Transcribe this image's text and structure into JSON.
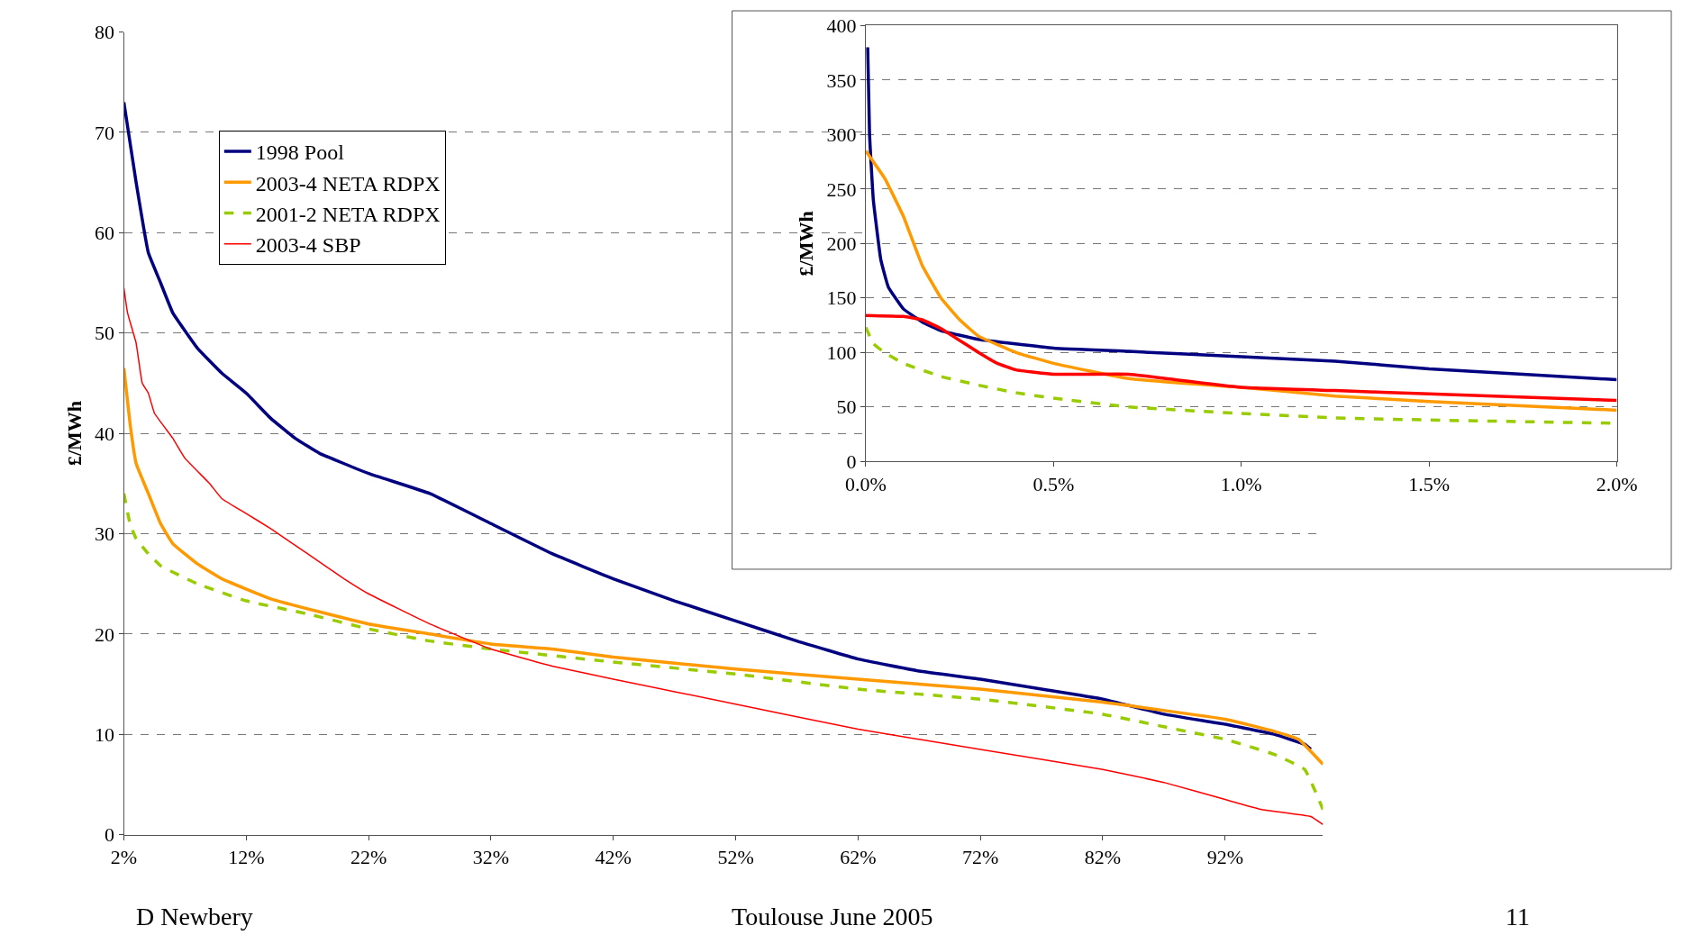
{
  "chart_data": [
    {
      "type": "line",
      "ylabel": "£/MWh",
      "xlim": [
        2,
        100
      ],
      "xticks": [
        {
          "value": 2,
          "label": "2%"
        },
        {
          "value": 12,
          "label": "12%"
        },
        {
          "value": 22,
          "label": "22%"
        },
        {
          "value": 32,
          "label": "32%"
        },
        {
          "value": 42,
          "label": "42%"
        },
        {
          "value": 52,
          "label": "52%"
        },
        {
          "value": 62,
          "label": "62%"
        },
        {
          "value": 72,
          "label": "72%"
        },
        {
          "value": 82,
          "label": "82%"
        },
        {
          "value": 92,
          "label": "92%"
        }
      ],
      "ylim": [
        0,
        80
      ],
      "yticks": [
        0,
        10,
        20,
        30,
        40,
        50,
        60,
        70,
        80
      ],
      "grid": "y",
      "legend": "top left",
      "marker": "none",
      "annotations": [
        "D Newbery",
        "Toulouse June 2005",
        "11"
      ],
      "series": [
        {
          "name": "1998 Pool",
          "color": "#000080",
          "line_style": "solid",
          "x": [
            2,
            3,
            4,
            5,
            6,
            8,
            10,
            12,
            14,
            16,
            18,
            22,
            27,
            32,
            37,
            42,
            47,
            52,
            57,
            62,
            67,
            72,
            77,
            82,
            87,
            92,
            96,
            98.5,
            99
          ],
          "values": [
            73,
            65,
            58,
            55,
            52,
            48.5,
            46,
            44,
            41.5,
            39.5,
            38,
            36,
            34,
            31,
            28,
            25.5,
            23.3,
            21.3,
            19.3,
            17.5,
            16.3,
            15.5,
            14.5,
            13.5,
            12,
            11,
            10,
            9,
            8.5
          ]
        },
        {
          "name": "2003-4 NETA RDPX",
          "color": "#ff9900",
          "line_style": "solid",
          "x": [
            2,
            2.5,
            3,
            4,
            5,
            6,
            8,
            10,
            14,
            18,
            22,
            27,
            32,
            37,
            42,
            52,
            62,
            72,
            82,
            92,
            96,
            98,
            100
          ],
          "values": [
            46.5,
            41,
            37,
            34,
            31,
            29,
            27,
            25.5,
            23.5,
            22.2,
            21,
            20,
            19,
            18.5,
            17.7,
            16.5,
            15.5,
            14.5,
            13.2,
            11.5,
            10.3,
            9.5,
            7
          ]
        },
        {
          "name": "2001-2 NETA RDPX",
          "color": "#99cc00",
          "line_style": "dashed",
          "x": [
            2,
            2.5,
            3,
            4,
            5,
            8,
            12,
            17,
            22,
            27,
            32,
            42,
            52,
            62,
            72,
            82,
            88,
            92,
            96,
            98.5,
            100
          ],
          "values": [
            34,
            31,
            29.5,
            28,
            26.8,
            25,
            23.3,
            22,
            20.5,
            19.3,
            18.5,
            17.2,
            16,
            14.5,
            13.5,
            12,
            10.5,
            9.5,
            8,
            6.5,
            2.5
          ]
        },
        {
          "name": "2003-4 SBP",
          "color": "#ff0000",
          "line_style": "solid",
          "x": [
            2,
            2.3,
            3,
            3.5,
            4,
            4.5,
            6,
            7,
            9,
            10,
            12,
            14,
            17,
            20,
            22,
            27,
            32,
            37,
            42,
            52,
            62,
            72,
            82,
            87,
            92,
            95,
            99,
            100
          ],
          "values": [
            54.5,
            52,
            49,
            45,
            44,
            42,
            39.5,
            37.5,
            35,
            33.5,
            32,
            30.5,
            28,
            25.5,
            24,
            21,
            18.5,
            16.8,
            15.5,
            13,
            10.5,
            8.5,
            6.5,
            5.2,
            3.5,
            2.5,
            1.8,
            1
          ]
        }
      ]
    },
    {
      "type": "line",
      "ylabel": "£/MWh",
      "xlim": [
        0,
        2
      ],
      "xticks": [
        {
          "value": 0,
          "label": "0.0%"
        },
        {
          "value": 0.5,
          "label": "0.5%"
        },
        {
          "value": 1,
          "label": "1.0%"
        },
        {
          "value": 1.5,
          "label": "1.5%"
        },
        {
          "value": 2,
          "label": "2.0%"
        }
      ],
      "ylim": [
        0,
        400
      ],
      "yticks": [
        0,
        50,
        100,
        150,
        200,
        250,
        300,
        350,
        400
      ],
      "grid": "y",
      "marker": "none",
      "series": [
        {
          "color": "#000080",
          "line_style": "solid",
          "x": [
            0.005,
            0.01,
            0.02,
            0.04,
            0.06,
            0.1,
            0.15,
            0.2,
            0.3,
            0.5,
            0.7,
            1.0,
            1.25,
            1.5,
            1.75,
            2.0
          ],
          "values": [
            380,
            300,
            240,
            185,
            160,
            140,
            128,
            120,
            112,
            104,
            101,
            96,
            92,
            85,
            80,
            75
          ]
        },
        {
          "color": "#ff9900",
          "line_style": "solid",
          "x": [
            0,
            0.05,
            0.1,
            0.15,
            0.2,
            0.25,
            0.3,
            0.4,
            0.5,
            0.7,
            1.0,
            1.25,
            1.5,
            2.0
          ],
          "values": [
            285,
            260,
            225,
            180,
            150,
            130,
            115,
            100,
            90,
            76,
            68,
            60,
            55,
            47
          ]
        },
        {
          "color": "#99cc00",
          "line_style": "dashed",
          "x": [
            0,
            0.02,
            0.05,
            0.1,
            0.2,
            0.3,
            0.4,
            0.5,
            0.7,
            1.0,
            1.25,
            1.5,
            2.0
          ],
          "values": [
            123,
            108,
            100,
            90,
            78,
            70,
            63,
            58,
            50,
            44,
            40,
            38,
            35
          ]
        },
        {
          "color": "#ff0000",
          "line_style": "solid",
          "x": [
            0,
            0.1,
            0.15,
            0.2,
            0.3,
            0.35,
            0.4,
            0.5,
            0.7,
            0.8,
            1.0,
            1.25,
            1.5,
            2.0
          ],
          "values": [
            134,
            133,
            130,
            122,
            100,
            90,
            84,
            80,
            80,
            76,
            68,
            65,
            62,
            56
          ]
        }
      ]
    }
  ]
}
